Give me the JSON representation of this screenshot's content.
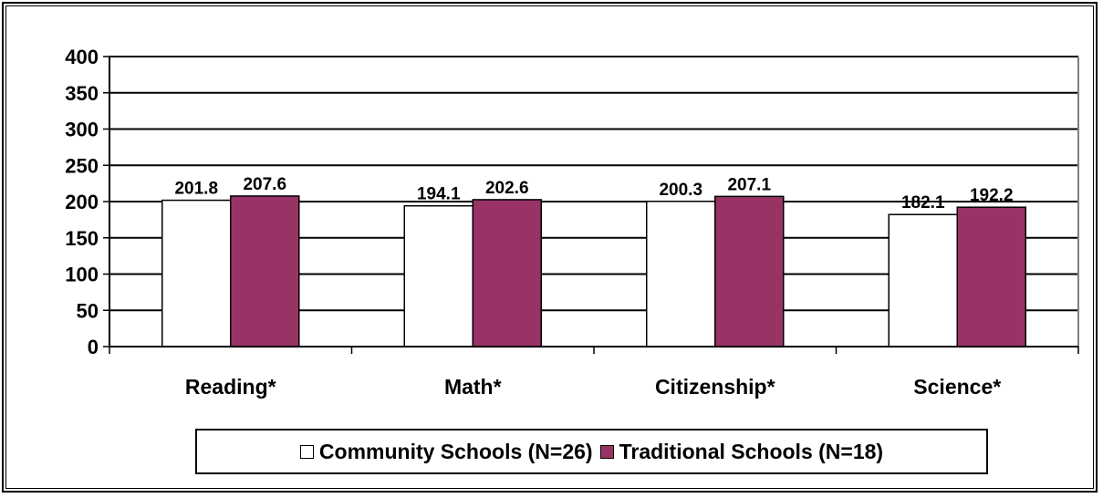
{
  "chart_data": {
    "type": "bar",
    "categories": [
      "Reading*",
      "Math*",
      "Citizenship*",
      "Science*"
    ],
    "series": [
      {
        "name": "Community Schools (N=26)",
        "values": [
          201.8,
          194.1,
          200.3,
          182.1
        ],
        "color": "#ffffff"
      },
      {
        "name": "Traditional Schools (N=18)",
        "values": [
          207.6,
          202.6,
          207.1,
          192.2
        ],
        "color": "#993366"
      }
    ],
    "ylim": [
      0,
      400
    ],
    "yticks": [
      0,
      50,
      100,
      150,
      200,
      250,
      300,
      350,
      400
    ],
    "grid": true,
    "legend_position": "bottom",
    "data_labels": true
  }
}
